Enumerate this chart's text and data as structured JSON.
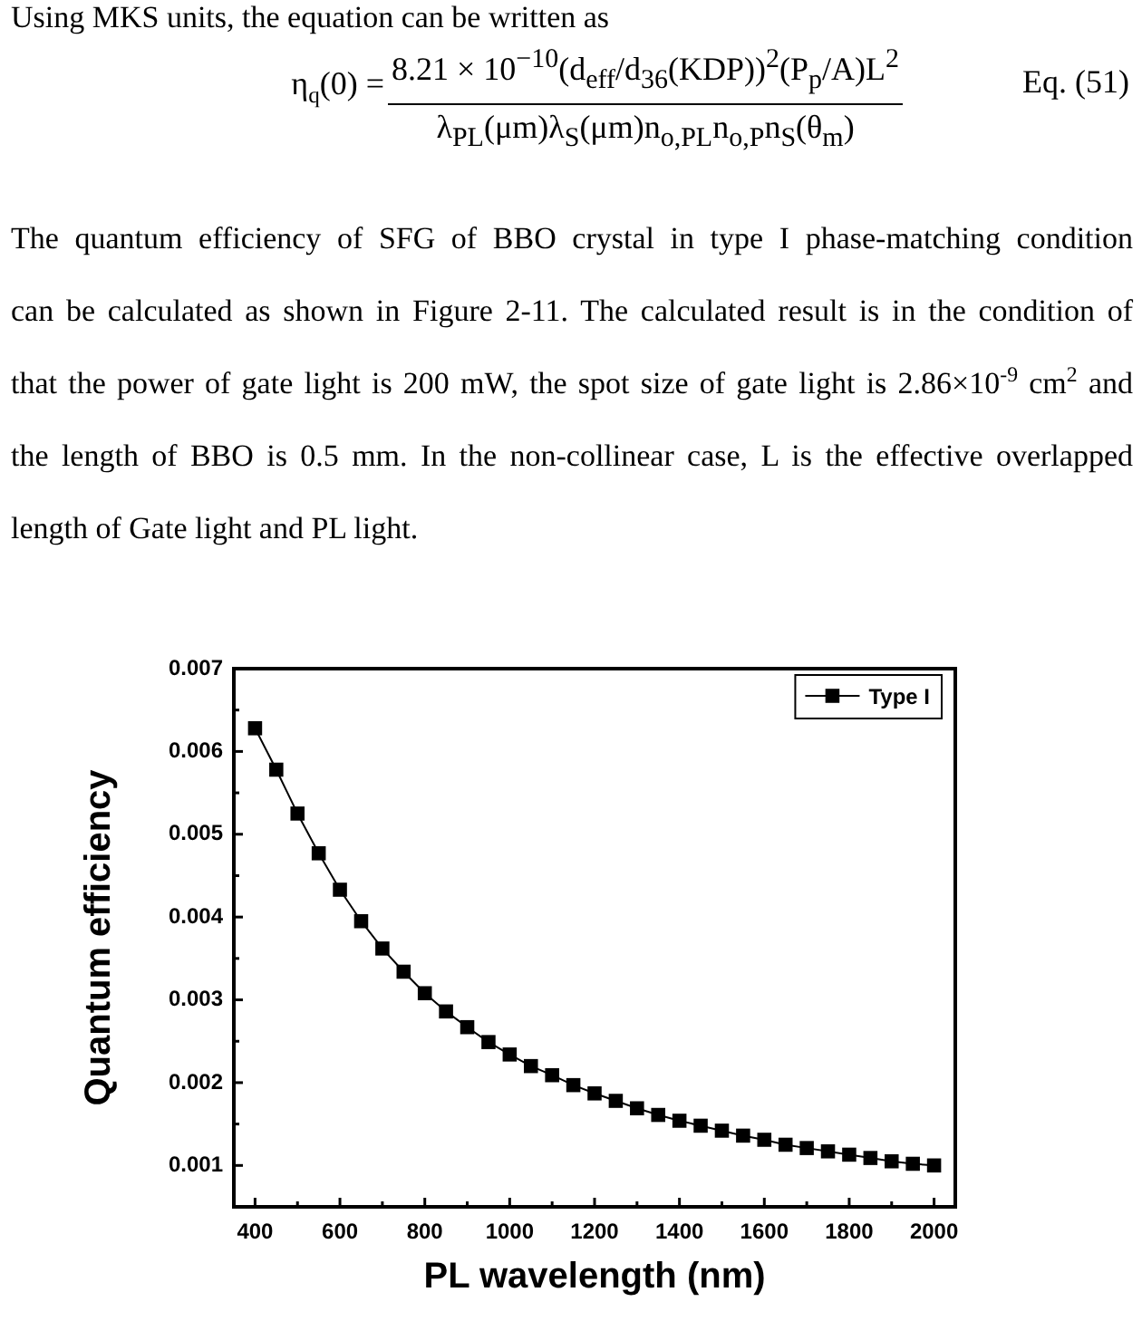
{
  "chart_data": {
    "type": "line",
    "annotations": [
      "Using MKS units, the equation can be written as",
      "η$_{q}$(0) =",
      "8.21 × 10$^{−10}$(d$_{eff}$/d$_{36}$(KDP))$^{2}$(P$_{p}$/A)L$^{2}$",
      "λ$_{PL}$(μm)λ$_{S}$(μm)n$_{o,PL}$n$_{o,P}$n$_{S}$(θ$_{m}$)",
      "Eq. (51)",
      "The quantum efficiency of SFG of BBO crystal in type I phase-matching condition",
      "can be calculated as shown in Figure 2-11. The calculated result is in the condition of",
      "that the power of gate light is 200 mW, the spot size of gate light is 2.86×10$^{-9}$ cm$^{2}$ and",
      "the length of BBO is 0.5 mm. In the non-collinear case, L is the effective overlapped",
      "length of Gate light and PL light."
    ],
    "xlabel": "PL wavelength (nm)",
    "ylabel": "Quantum efficiency",
    "x": [
      400,
      450,
      500,
      550,
      600,
      650,
      700,
      750,
      800,
      850,
      900,
      950,
      1000,
      1050,
      1100,
      1150,
      1200,
      1250,
      1300,
      1350,
      1400,
      1450,
      1500,
      1550,
      1600,
      1650,
      1700,
      1750,
      1800,
      1850,
      1900,
      1950,
      2000
    ],
    "series": [
      {
        "name": "Type I",
        "color": "#000000",
        "values": [
          0.00628,
          0.00578,
          0.00525,
          0.00477,
          0.00433,
          0.00395,
          0.00362,
          0.00334,
          0.00308,
          0.00286,
          0.00267,
          0.00249,
          0.00234,
          0.0022,
          0.00209,
          0.00197,
          0.00187,
          0.00178,
          0.00169,
          0.00161,
          0.00154,
          0.00148,
          0.00142,
          0.00136,
          0.00131,
          0.00125,
          0.00121,
          0.00117,
          0.00113,
          0.00109,
          0.00105,
          0.00102,
          0.001
        ]
      }
    ],
    "xlim": [
      350,
      2050
    ],
    "ylim": [
      0.0005,
      0.007
    ],
    "xticks": [
      400,
      {
        "value": 500,
        "label": null
      },
      600,
      {
        "value": 700,
        "label": null
      },
      800,
      {
        "value": 900,
        "label": null
      },
      1000,
      {
        "value": 1100,
        "label": null
      },
      1200,
      {
        "value": 1300,
        "label": null
      },
      1400,
      {
        "value": 1500,
        "label": null
      },
      1600,
      {
        "value": 1700,
        "label": null
      },
      1800,
      {
        "value": 1900,
        "label": null
      },
      2000
    ],
    "yticks": [
      0.001,
      {
        "value": 0.0015,
        "label": null
      },
      0.002,
      {
        "value": 0.0025,
        "label": null
      },
      0.003,
      {
        "value": 0.0035,
        "label": null
      },
      0.004,
      {
        "value": 0.0045,
        "label": null
      },
      0.005,
      {
        "value": 0.0055,
        "label": null
      },
      0.006,
      {
        "value": 0.0065,
        "label": null
      },
      0.007
    ],
    "legend": "top right",
    "marker": "square",
    "line_style": "solid"
  }
}
